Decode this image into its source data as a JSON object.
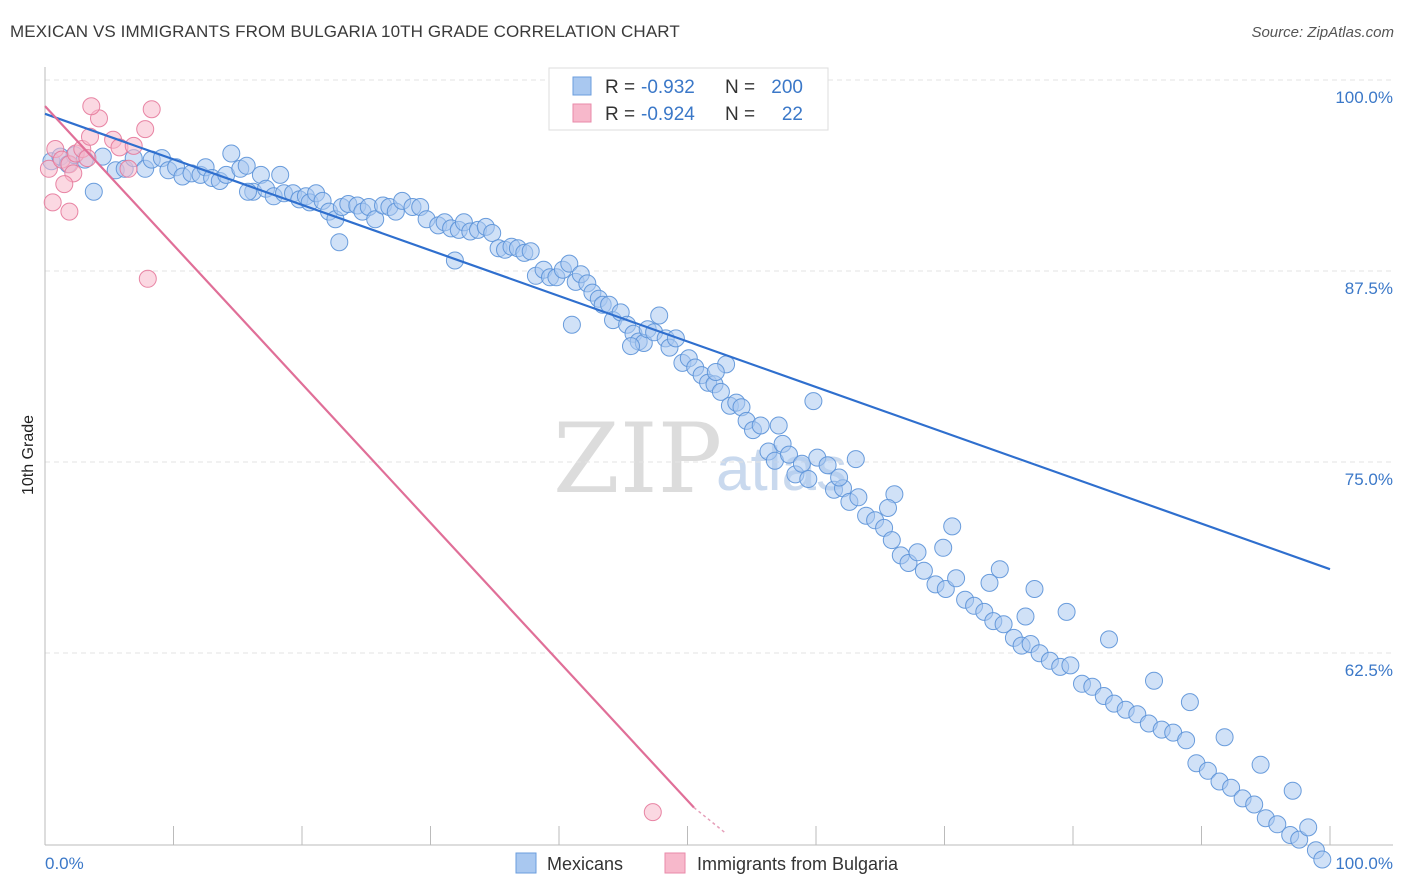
{
  "header": {
    "title": "MEXICAN VS IMMIGRANTS FROM BULGARIA 10TH GRADE CORRELATION CHART",
    "source": "Source: ZipAtlas.com"
  },
  "watermark": {
    "zip": "ZIP",
    "atlas": "atlas"
  },
  "legend": {
    "rows": [
      {
        "r_label": "R = ",
        "r_value": "-0.932",
        "n_label": "N = ",
        "n_value": "200",
        "color": "#a9c8f0"
      },
      {
        "r_label": "R = ",
        "r_value": "-0.924",
        "n_label": "N = ",
        "n_value": "22",
        "color": "#f7b8cb"
      }
    ]
  },
  "bottom_legend": [
    "Mexicans",
    "Immigrants from Bulgaria"
  ],
  "chart_data": {
    "type": "scatter",
    "title": "MEXICAN VS IMMIGRANTS FROM BULGARIA 10TH GRADE CORRELATION CHART",
    "xlabel": "",
    "ylabel": "10th Grade",
    "xlim": [
      0,
      100
    ],
    "ylim": [
      50,
      101.5
    ],
    "x_tick_labels": [
      "0.0%",
      "100.0%"
    ],
    "y_ticks": [
      62.5,
      75.0,
      87.5,
      100.0
    ],
    "y_tick_labels": [
      "62.5%",
      "75.0%",
      "87.5%",
      "100.0%"
    ],
    "grid": true,
    "legend_position": "top-center",
    "series": [
      {
        "name": "Mexicans",
        "color": "#a9c8f0",
        "edge": "#5b92d8",
        "trend": {
          "x": [
            0,
            100
          ],
          "y": [
            98.9,
            69.1
          ]
        },
        "points": [
          [
            0.5,
            95.8
          ],
          [
            1.2,
            96.1
          ],
          [
            1.8,
            95.6
          ],
          [
            2.3,
            96.2
          ],
          [
            3.1,
            95.9
          ],
          [
            3.8,
            93.8
          ],
          [
            4.5,
            96.1
          ],
          [
            5.5,
            95.2
          ],
          [
            6.2,
            95.3
          ],
          [
            6.9,
            96.0
          ],
          [
            7.8,
            95.3
          ],
          [
            8.3,
            95.9
          ],
          [
            9.1,
            96.0
          ],
          [
            9.6,
            95.2
          ],
          [
            10.2,
            95.4
          ],
          [
            10.7,
            94.8
          ],
          [
            11.4,
            95.0
          ],
          [
            12.1,
            94.9
          ],
          [
            12.5,
            95.4
          ],
          [
            13.0,
            94.7
          ],
          [
            13.6,
            94.5
          ],
          [
            14.1,
            94.9
          ],
          [
            14.5,
            96.3
          ],
          [
            15.2,
            95.3
          ],
          [
            15.7,
            95.5
          ],
          [
            16.2,
            93.8
          ],
          [
            16.8,
            94.9
          ],
          [
            17.2,
            94.0
          ],
          [
            17.8,
            93.5
          ],
          [
            18.3,
            94.9
          ],
          [
            18.6,
            93.7
          ],
          [
            19.3,
            93.7
          ],
          [
            19.8,
            93.3
          ],
          [
            20.3,
            93.5
          ],
          [
            20.6,
            93.1
          ],
          [
            21.1,
            93.7
          ],
          [
            21.6,
            93.2
          ],
          [
            22.1,
            92.5
          ],
          [
            22.6,
            92.0
          ],
          [
            23.1,
            92.8
          ],
          [
            23.6,
            93.0
          ],
          [
            24.3,
            92.9
          ],
          [
            24.7,
            92.5
          ],
          [
            25.2,
            92.8
          ],
          [
            25.7,
            92.0
          ],
          [
            26.3,
            92.9
          ],
          [
            26.8,
            92.8
          ],
          [
            27.3,
            92.5
          ],
          [
            27.8,
            93.2
          ],
          [
            28.6,
            92.8
          ],
          [
            29.2,
            92.8
          ],
          [
            29.7,
            92.0
          ],
          [
            30.6,
            91.6
          ],
          [
            31.1,
            91.8
          ],
          [
            31.6,
            91.4
          ],
          [
            32.2,
            91.3
          ],
          [
            32.6,
            91.8
          ],
          [
            33.1,
            91.2
          ],
          [
            33.7,
            91.3
          ],
          [
            34.3,
            91.5
          ],
          [
            34.8,
            91.1
          ],
          [
            35.3,
            90.1
          ],
          [
            35.8,
            90.0
          ],
          [
            36.3,
            90.2
          ],
          [
            36.8,
            90.1
          ],
          [
            37.3,
            89.8
          ],
          [
            37.8,
            89.9
          ],
          [
            38.2,
            88.3
          ],
          [
            38.8,
            88.7
          ],
          [
            39.3,
            88.2
          ],
          [
            39.8,
            88.2
          ],
          [
            40.3,
            88.7
          ],
          [
            40.8,
            89.1
          ],
          [
            41.3,
            87.9
          ],
          [
            41.7,
            88.4
          ],
          [
            42.2,
            87.8
          ],
          [
            42.6,
            87.2
          ],
          [
            43.1,
            86.8
          ],
          [
            43.4,
            86.4
          ],
          [
            43.9,
            86.4
          ],
          [
            44.2,
            85.4
          ],
          [
            44.8,
            85.9
          ],
          [
            45.3,
            85.1
          ],
          [
            45.8,
            84.5
          ],
          [
            46.2,
            84.0
          ],
          [
            46.6,
            83.9
          ],
          [
            46.9,
            84.8
          ],
          [
            47.4,
            84.6
          ],
          [
            47.8,
            85.7
          ],
          [
            48.3,
            84.2
          ],
          [
            48.6,
            83.6
          ],
          [
            49.1,
            84.2
          ],
          [
            49.6,
            82.6
          ],
          [
            50.1,
            82.9
          ],
          [
            50.6,
            82.3
          ],
          [
            51.1,
            81.8
          ],
          [
            51.6,
            81.3
          ],
          [
            52.1,
            81.2
          ],
          [
            52.6,
            80.7
          ],
          [
            53.3,
            79.8
          ],
          [
            53.8,
            80.0
          ],
          [
            54.2,
            79.7
          ],
          [
            54.6,
            78.8
          ],
          [
            55.1,
            78.2
          ],
          [
            55.7,
            78.5
          ],
          [
            56.3,
            76.8
          ],
          [
            56.8,
            76.2
          ],
          [
            57.4,
            77.3
          ],
          [
            57.9,
            76.6
          ],
          [
            58.4,
            75.3
          ],
          [
            58.9,
            76.0
          ],
          [
            59.4,
            75.0
          ],
          [
            60.1,
            76.4
          ],
          [
            60.9,
            75.9
          ],
          [
            61.4,
            74.3
          ],
          [
            62.1,
            74.4
          ],
          [
            62.6,
            73.5
          ],
          [
            63.3,
            73.8
          ],
          [
            63.9,
            72.6
          ],
          [
            64.6,
            72.3
          ],
          [
            65.3,
            71.8
          ],
          [
            65.9,
            71.0
          ],
          [
            66.6,
            70.0
          ],
          [
            67.2,
            69.5
          ],
          [
            67.9,
            70.2
          ],
          [
            68.4,
            69.0
          ],
          [
            69.3,
            68.1
          ],
          [
            70.1,
            67.8
          ],
          [
            70.9,
            68.5
          ],
          [
            71.6,
            67.1
          ],
          [
            72.3,
            66.7
          ],
          [
            73.1,
            66.3
          ],
          [
            73.8,
            65.7
          ],
          [
            74.6,
            65.5
          ],
          [
            75.4,
            64.6
          ],
          [
            76.0,
            64.1
          ],
          [
            76.7,
            64.2
          ],
          [
            77.4,
            63.6
          ],
          [
            78.2,
            63.1
          ],
          [
            79.0,
            62.7
          ],
          [
            79.8,
            62.8
          ],
          [
            80.7,
            61.6
          ],
          [
            81.5,
            61.4
          ],
          [
            82.4,
            60.8
          ],
          [
            83.2,
            60.3
          ],
          [
            84.1,
            59.9
          ],
          [
            85.0,
            59.6
          ],
          [
            85.9,
            59.0
          ],
          [
            86.9,
            58.6
          ],
          [
            87.8,
            58.4
          ],
          [
            88.8,
            57.9
          ],
          [
            89.6,
            56.4
          ],
          [
            90.5,
            55.9
          ],
          [
            91.4,
            55.2
          ],
          [
            92.3,
            54.8
          ],
          [
            93.2,
            54.1
          ],
          [
            94.1,
            53.7
          ],
          [
            95.0,
            52.8
          ],
          [
            95.9,
            52.4
          ],
          [
            96.9,
            51.7
          ],
          [
            97.6,
            51.4
          ],
          [
            98.3,
            52.2
          ],
          [
            98.9,
            50.7
          ],
          [
            99.4,
            50.1
          ],
          [
            15.8,
            93.8
          ],
          [
            22.9,
            90.5
          ],
          [
            31.9,
            89.3
          ],
          [
            41.0,
            85.1
          ],
          [
            45.6,
            83.7
          ],
          [
            53.0,
            82.5
          ],
          [
            59.8,
            80.1
          ],
          [
            63.1,
            76.3
          ],
          [
            66.1,
            74.0
          ],
          [
            70.6,
            71.9
          ],
          [
            74.3,
            69.1
          ],
          [
            77.0,
            67.8
          ],
          [
            79.5,
            66.3
          ],
          [
            82.8,
            64.5
          ],
          [
            86.3,
            61.8
          ],
          [
            89.1,
            60.4
          ],
          [
            91.8,
            58.1
          ],
          [
            94.6,
            56.3
          ],
          [
            97.1,
            54.6
          ],
          [
            52.2,
            82.0
          ],
          [
            57.1,
            78.5
          ],
          [
            61.8,
            75.1
          ],
          [
            65.6,
            73.1
          ],
          [
            69.9,
            70.5
          ],
          [
            73.5,
            68.2
          ],
          [
            76.3,
            66.0
          ]
        ]
      },
      {
        "name": "Immigrants from Bulgaria",
        "color": "#f7b8cb",
        "edge": "#e6799b",
        "trend": {
          "x": [
            0,
            50.5
          ],
          "y": [
            99.4,
            53.5
          ],
          "dashed_to": [
            53.0,
            51.8
          ]
        },
        "points": [
          [
            0.3,
            95.3
          ],
          [
            0.8,
            96.6
          ],
          [
            1.3,
            95.9
          ],
          [
            1.9,
            95.6
          ],
          [
            2.4,
            96.3
          ],
          [
            2.9,
            96.6
          ],
          [
            3.3,
            96.0
          ],
          [
            3.5,
            97.4
          ],
          [
            4.2,
            98.6
          ],
          [
            5.3,
            97.2
          ],
          [
            5.8,
            96.7
          ],
          [
            6.5,
            95.3
          ],
          [
            6.9,
            96.8
          ],
          [
            7.8,
            97.9
          ],
          [
            8.3,
            99.2
          ],
          [
            2.2,
            95.0
          ],
          [
            1.5,
            94.3
          ],
          [
            0.6,
            93.1
          ],
          [
            1.9,
            92.5
          ],
          [
            8.0,
            88.1
          ],
          [
            3.6,
            99.4
          ],
          [
            47.3,
            53.2
          ]
        ]
      }
    ]
  }
}
